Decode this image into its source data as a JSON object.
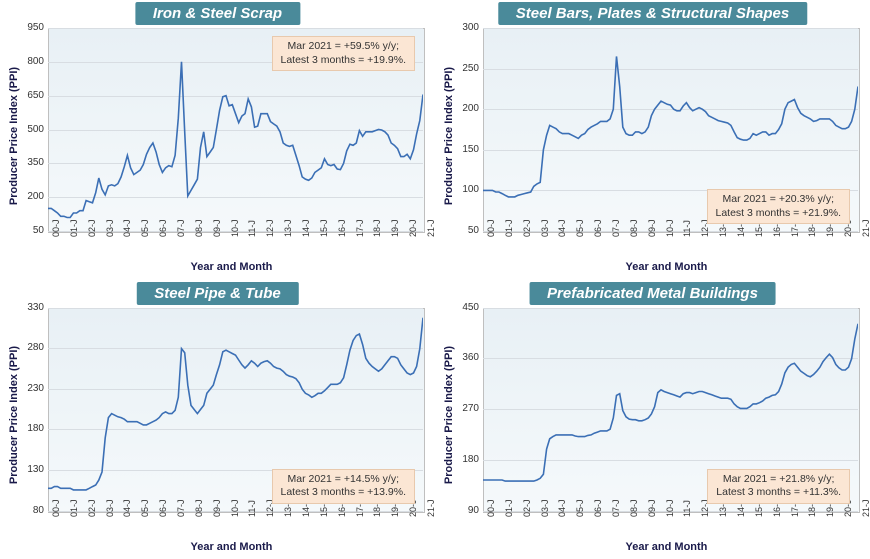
{
  "global": {
    "ylabel": "Producer Price Index (PPI)",
    "xlabel": "Year and Month",
    "xcats": [
      "00-J",
      "01-J",
      "02-J",
      "03-J",
      "04-J",
      "05-J",
      "06-J",
      "07-J",
      "08-J",
      "09-J",
      "10-J",
      "11-J",
      "12-J",
      "13-J",
      "14-J",
      "15-J",
      "16-J",
      "17-J",
      "18-J",
      "19-J",
      "20-J",
      "21-J"
    ],
    "line_color": "#3b6fb5",
    "line_width": 1.6,
    "grid_color": "#d8dde2",
    "bg_gradient_top": "#e8f0f5",
    "bg_gradient_bot": "#f5f9fb",
    "title_bg": "#4a8a9a",
    "anno_bg": "#fbe6d4",
    "label_fontsize": 11,
    "tick_fontsize": 10,
    "title_fontsize": 15
  },
  "panels": [
    {
      "key": "p1",
      "title": "Iron & Steel Scrap",
      "ylim": [
        50,
        950
      ],
      "ytick_step": 150,
      "anno_line1": "Mar 2021 = +59.5% y/y;",
      "anno_line2": "Latest 3 months = +19.9%.",
      "anno_pos": "top-right",
      "data": [
        150,
        150,
        140,
        130,
        115,
        115,
        110,
        110,
        130,
        130,
        140,
        140,
        185,
        180,
        175,
        220,
        285,
        235,
        210,
        250,
        255,
        250,
        260,
        290,
        335,
        385,
        330,
        300,
        310,
        320,
        345,
        390,
        420,
        440,
        400,
        345,
        310,
        330,
        340,
        335,
        385,
        550,
        800,
        490,
        205,
        230,
        255,
        280,
        420,
        490,
        380,
        400,
        420,
        500,
        585,
        645,
        650,
        605,
        610,
        570,
        530,
        560,
        570,
        635,
        600,
        510,
        515,
        570,
        570,
        570,
        535,
        525,
        515,
        490,
        440,
        430,
        425,
        430,
        385,
        340,
        290,
        280,
        275,
        285,
        310,
        320,
        330,
        370,
        345,
        340,
        345,
        325,
        322,
        350,
        405,
        435,
        430,
        440,
        495,
        470,
        490,
        490,
        490,
        495,
        500,
        498,
        490,
        475,
        440,
        430,
        415,
        380,
        380,
        390,
        370,
        410,
        480,
        540,
        655
      ]
    },
    {
      "key": "p2",
      "title": "Steel Bars, Plates & Structural Shapes",
      "ylim": [
        50,
        300
      ],
      "ytick_step": 50,
      "anno_line1": "Mar 2021 = +20.3% y/y;",
      "anno_line2": "Latest 3 months = +21.9%.",
      "anno_pos": "bottom-right",
      "data": [
        100,
        100,
        100,
        100,
        98,
        98,
        96,
        94,
        92,
        92,
        92,
        94,
        95,
        96,
        97,
        98,
        105,
        108,
        110,
        150,
        168,
        180,
        178,
        176,
        172,
        170,
        170,
        170,
        168,
        166,
        164,
        168,
        170,
        175,
        178,
        180,
        182,
        185,
        185,
        185,
        188,
        200,
        265,
        228,
        178,
        170,
        168,
        168,
        172,
        172,
        170,
        172,
        178,
        192,
        200,
        205,
        210,
        208,
        206,
        205,
        200,
        198,
        198,
        204,
        208,
        202,
        198,
        200,
        202,
        200,
        197,
        192,
        190,
        188,
        186,
        185,
        184,
        183,
        180,
        172,
        165,
        163,
        162,
        162,
        164,
        170,
        168,
        170,
        172,
        172,
        168,
        170,
        170,
        175,
        182,
        200,
        208,
        210,
        212,
        202,
        195,
        192,
        190,
        188,
        185,
        186,
        188,
        188,
        188,
        188,
        185,
        180,
        178,
        176,
        176,
        178,
        185,
        200,
        228
      ]
    },
    {
      "key": "p3",
      "title": "Steel Pipe & Tube",
      "ylim": [
        80,
        330
      ],
      "ytick_step": 50,
      "anno_line1": "Mar 2021 = +14.5% y/y;",
      "anno_line2": "Latest 3 months = +13.9%.",
      "anno_pos": "bottom-right",
      "data": [
        108,
        108,
        110,
        110,
        108,
        108,
        108,
        108,
        106,
        106,
        106,
        106,
        106,
        108,
        110,
        112,
        118,
        128,
        170,
        195,
        200,
        198,
        196,
        195,
        193,
        190,
        190,
        190,
        190,
        188,
        186,
        186,
        188,
        190,
        192,
        195,
        200,
        202,
        200,
        200,
        204,
        220,
        280,
        275,
        235,
        210,
        205,
        200,
        205,
        210,
        225,
        230,
        235,
        248,
        260,
        276,
        278,
        276,
        274,
        272,
        266,
        260,
        256,
        260,
        265,
        262,
        258,
        262,
        264,
        265,
        262,
        258,
        256,
        255,
        252,
        248,
        246,
        245,
        243,
        238,
        230,
        225,
        223,
        220,
        222,
        225,
        225,
        228,
        232,
        236,
        236,
        236,
        238,
        244,
        260,
        278,
        290,
        296,
        298,
        285,
        268,
        262,
        258,
        255,
        252,
        255,
        260,
        265,
        270,
        270,
        268,
        260,
        255,
        250,
        248,
        250,
        258,
        280,
        318
      ]
    },
    {
      "key": "p4",
      "title": "Prefabricated Metal Buildings",
      "ylim": [
        90,
        450
      ],
      "ytick_step": 90,
      "anno_line1": "Mar 2021 = +21.8% y/y;",
      "anno_line2": "Latest 3 months = +11.3%.",
      "anno_pos": "bottom-right",
      "data": [
        145,
        145,
        145,
        145,
        145,
        145,
        145,
        143,
        143,
        143,
        143,
        143,
        143,
        143,
        143,
        143,
        143,
        145,
        148,
        155,
        200,
        218,
        222,
        225,
        225,
        225,
        225,
        225,
        225,
        223,
        222,
        222,
        222,
        224,
        225,
        228,
        230,
        232,
        232,
        232,
        235,
        255,
        295,
        298,
        268,
        257,
        253,
        252,
        252,
        250,
        250,
        252,
        255,
        262,
        275,
        300,
        305,
        302,
        300,
        298,
        296,
        294,
        292,
        298,
        300,
        300,
        298,
        300,
        302,
        302,
        300,
        298,
        296,
        294,
        292,
        290,
        290,
        290,
        288,
        280,
        275,
        272,
        272,
        272,
        275,
        280,
        280,
        282,
        285,
        290,
        292,
        295,
        296,
        302,
        315,
        335,
        345,
        350,
        352,
        345,
        338,
        334,
        330,
        328,
        332,
        338,
        345,
        355,
        362,
        368,
        362,
        350,
        344,
        340,
        340,
        345,
        360,
        395,
        422
      ]
    }
  ]
}
